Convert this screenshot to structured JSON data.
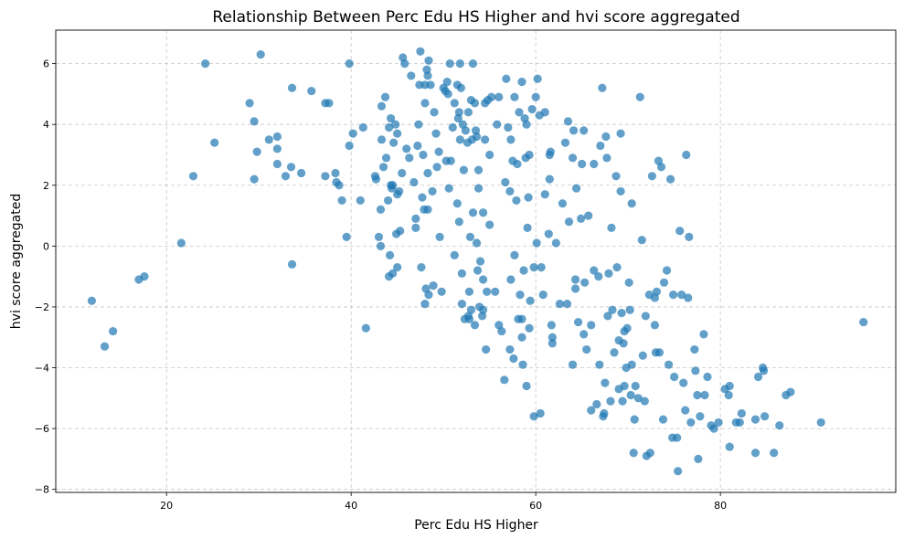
{
  "chart_data": {
    "type": "scatter",
    "title": "Relationship Between Perc Edu HS Higher and hvi score aggregated",
    "xlabel": "Perc Edu HS Higher",
    "ylabel": "hvi score aggregated",
    "xlim": [
      8,
      99
    ],
    "ylim": [
      -8.1,
      7.1
    ],
    "xticks": [
      20,
      40,
      60,
      80
    ],
    "yticks": [
      -8,
      -6,
      -4,
      -2,
      0,
      2,
      4,
      6
    ],
    "grid": true,
    "marker_color": "#1f77b4",
    "marker_alpha": 0.7,
    "points": [
      [
        11.9,
        -1.8
      ],
      [
        13.3,
        -3.3
      ],
      [
        14.2,
        -2.8
      ],
      [
        17.0,
        -1.1
      ],
      [
        17.6,
        -1.0
      ],
      [
        21.6,
        0.1
      ],
      [
        22.9,
        2.3
      ],
      [
        24.2,
        6.0
      ],
      [
        25.2,
        3.4
      ],
      [
        29.0,
        4.7
      ],
      [
        29.5,
        4.1
      ],
      [
        29.5,
        2.2
      ],
      [
        29.8,
        3.1
      ],
      [
        30.2,
        6.3
      ],
      [
        31.1,
        3.5
      ],
      [
        32.0,
        3.6
      ],
      [
        32.0,
        3.2
      ],
      [
        32.0,
        2.7
      ],
      [
        32.9,
        2.3
      ],
      [
        33.5,
        2.6
      ],
      [
        33.6,
        5.2
      ],
      [
        33.6,
        -0.6
      ],
      [
        34.6,
        2.4
      ],
      [
        35.7,
        5.1
      ],
      [
        37.2,
        4.7
      ],
      [
        37.2,
        2.3
      ],
      [
        37.6,
        4.7
      ],
      [
        38.3,
        2.4
      ],
      [
        38.4,
        2.1
      ],
      [
        38.7,
        2.0
      ],
      [
        39.0,
        1.5
      ],
      [
        39.5,
        0.3
      ],
      [
        39.8,
        6.0
      ],
      [
        39.8,
        3.3
      ],
      [
        40.2,
        3.7
      ],
      [
        41.0,
        1.5
      ],
      [
        41.3,
        3.9
      ],
      [
        41.6,
        -2.7
      ],
      [
        42.6,
        2.3
      ],
      [
        42.7,
        2.2
      ],
      [
        43.0,
        0.3
      ],
      [
        43.2,
        0.0
      ],
      [
        43.2,
        1.2
      ],
      [
        43.3,
        4.6
      ],
      [
        43.3,
        3.5
      ],
      [
        43.5,
        2.6
      ],
      [
        43.7,
        4.9
      ],
      [
        43.8,
        2.9
      ],
      [
        44.0,
        1.5
      ],
      [
        44.1,
        3.9
      ],
      [
        44.1,
        -1.0
      ],
      [
        44.2,
        -0.3
      ],
      [
        44.3,
        2.0
      ],
      [
        44.3,
        4.2
      ],
      [
        44.4,
        1.9
      ],
      [
        44.5,
        -0.9
      ],
      [
        44.5,
        2.0
      ],
      [
        44.6,
        3.4
      ],
      [
        44.8,
        4.0
      ],
      [
        44.9,
        0.4
      ],
      [
        45.0,
        1.7
      ],
      [
        45.0,
        3.7
      ],
      [
        45.0,
        -0.7
      ],
      [
        45.2,
        1.8
      ],
      [
        45.3,
        0.5
      ],
      [
        45.5,
        2.4
      ],
      [
        45.6,
        6.2
      ],
      [
        45.8,
        6.0
      ],
      [
        46.0,
        3.2
      ],
      [
        46.3,
        2.9
      ],
      [
        46.5,
        5.6
      ],
      [
        46.8,
        2.1
      ],
      [
        47.0,
        0.6
      ],
      [
        47.0,
        0.9
      ],
      [
        47.2,
        3.3
      ],
      [
        47.3,
        4.0
      ],
      [
        47.4,
        5.3
      ],
      [
        47.5,
        6.4
      ],
      [
        47.6,
        -0.7
      ],
      [
        47.7,
        1.6
      ],
      [
        47.8,
        3.0
      ],
      [
        47.9,
        1.2
      ],
      [
        48.0,
        5.3
      ],
      [
        48.0,
        4.7
      ],
      [
        48.0,
        -1.9
      ],
      [
        48.1,
        -1.4
      ],
      [
        48.2,
        5.8
      ],
      [
        48.3,
        1.2
      ],
      [
        48.3,
        2.4
      ],
      [
        48.3,
        5.6
      ],
      [
        48.4,
        -1.6
      ],
      [
        48.4,
        6.1
      ],
      [
        48.6,
        5.3
      ],
      [
        48.8,
        1.8
      ],
      [
        48.9,
        -1.3
      ],
      [
        49.0,
        4.4
      ],
      [
        49.2,
        3.7
      ],
      [
        49.3,
        2.6
      ],
      [
        49.5,
        3.1
      ],
      [
        49.6,
        0.3
      ],
      [
        49.8,
        -1.5
      ],
      [
        50.0,
        5.2
      ],
      [
        50.2,
        5.1
      ],
      [
        50.3,
        2.8
      ],
      [
        50.4,
        5.4
      ],
      [
        50.5,
        5.0
      ],
      [
        50.6,
        1.9
      ],
      [
        50.7,
        6.0
      ],
      [
        50.8,
        2.8
      ],
      [
        51.0,
        3.9
      ],
      [
        51.2,
        -0.3
      ],
      [
        51.2,
        4.7
      ],
      [
        51.5,
        1.4
      ],
      [
        51.5,
        5.3
      ],
      [
        51.6,
        4.2
      ],
      [
        51.7,
        0.8
      ],
      [
        51.7,
        4.4
      ],
      [
        51.8,
        6.0
      ],
      [
        51.8,
        3.5
      ],
      [
        51.9,
        5.2
      ],
      [
        52.0,
        -0.9
      ],
      [
        52.0,
        -1.9
      ],
      [
        52.1,
        4.0
      ],
      [
        52.2,
        2.5
      ],
      [
        52.3,
        -2.4
      ],
      [
        52.4,
        3.8
      ],
      [
        52.6,
        3.4
      ],
      [
        52.7,
        4.4
      ],
      [
        52.7,
        -2.3
      ],
      [
        52.8,
        -1.5
      ],
      [
        52.8,
        -2.4
      ],
      [
        52.9,
        0.3
      ],
      [
        53.0,
        4.8
      ],
      [
        53.0,
        -2.1
      ],
      [
        53.1,
        3.5
      ],
      [
        53.2,
        6.0
      ],
      [
        53.2,
        1.1
      ],
      [
        53.4,
        4.7
      ],
      [
        53.4,
        -2.6
      ],
      [
        53.5,
        3.8
      ],
      [
        53.6,
        0.1
      ],
      [
        53.6,
        3.6
      ],
      [
        53.7,
        -0.8
      ],
      [
        53.8,
        2.5
      ],
      [
        53.8,
        1.9
      ],
      [
        53.9,
        -2.0
      ],
      [
        54.0,
        -0.5
      ],
      [
        54.2,
        -2.3
      ],
      [
        54.3,
        1.1
      ],
      [
        54.3,
        -2.1
      ],
      [
        54.3,
        -1.1
      ],
      [
        54.5,
        4.7
      ],
      [
        54.5,
        3.5
      ],
      [
        54.6,
        -3.4
      ],
      [
        54.7,
        -1.5
      ],
      [
        54.8,
        4.8
      ],
      [
        55.0,
        3.0
      ],
      [
        55.0,
        0.7
      ],
      [
        55.2,
        4.9
      ],
      [
        55.6,
        -1.5
      ],
      [
        55.8,
        4.0
      ],
      [
        56.0,
        -2.6
      ],
      [
        56.0,
        4.9
      ],
      [
        56.3,
        -2.8
      ],
      [
        56.6,
        -4.4
      ],
      [
        56.7,
        2.1
      ],
      [
        56.8,
        5.5
      ],
      [
        57.0,
        3.9
      ],
      [
        57.2,
        -3.4
      ],
      [
        57.2,
        1.8
      ],
      [
        57.3,
        3.5
      ],
      [
        57.3,
        -1.1
      ],
      [
        57.5,
        2.8
      ],
      [
        57.6,
        -3.7
      ],
      [
        57.7,
        4.9
      ],
      [
        57.7,
        -0.3
      ],
      [
        57.9,
        1.5
      ],
      [
        58.0,
        2.7
      ],
      [
        58.1,
        -2.4
      ],
      [
        58.2,
        4.4
      ],
      [
        58.3,
        -1.6
      ],
      [
        58.5,
        5.4
      ],
      [
        58.5,
        -3.0
      ],
      [
        58.5,
        -2.4
      ],
      [
        58.6,
        -3.9
      ],
      [
        58.7,
        -0.8
      ],
      [
        58.8,
        4.2
      ],
      [
        58.9,
        2.9
      ],
      [
        59.0,
        4.0
      ],
      [
        59.0,
        -4.6
      ],
      [
        59.1,
        0.6
      ],
      [
        59.2,
        1.6
      ],
      [
        59.3,
        -2.7
      ],
      [
        59.3,
        3.0
      ],
      [
        59.4,
        -1.8
      ],
      [
        59.6,
        4.5
      ],
      [
        59.8,
        -0.7
      ],
      [
        59.8,
        -5.6
      ],
      [
        60.0,
        4.9
      ],
      [
        60.1,
        0.1
      ],
      [
        60.2,
        5.5
      ],
      [
        60.4,
        4.3
      ],
      [
        60.5,
        -5.5
      ],
      [
        60.6,
        -0.7
      ],
      [
        60.8,
        -1.6
      ],
      [
        61.0,
        1.7
      ],
      [
        61.0,
        4.4
      ],
      [
        61.4,
        0.4
      ],
      [
        61.5,
        3.0
      ],
      [
        61.5,
        2.2
      ],
      [
        61.6,
        3.1
      ],
      [
        61.7,
        -2.6
      ],
      [
        61.8,
        -3.2
      ],
      [
        61.8,
        -3.0
      ],
      [
        62.2,
        0.1
      ],
      [
        62.6,
        -1.9
      ],
      [
        62.9,
        1.4
      ],
      [
        63.2,
        3.4
      ],
      [
        63.4,
        -1.9
      ],
      [
        63.5,
        4.1
      ],
      [
        63.6,
        0.8
      ],
      [
        64.0,
        2.9
      ],
      [
        64.0,
        -3.9
      ],
      [
        64.1,
        3.8
      ],
      [
        64.3,
        -1.4
      ],
      [
        64.3,
        -1.1
      ],
      [
        64.4,
        1.9
      ],
      [
        64.6,
        -2.5
      ],
      [
        64.9,
        0.9
      ],
      [
        65.0,
        2.7
      ],
      [
        65.2,
        3.8
      ],
      [
        65.2,
        -2.9
      ],
      [
        65.3,
        -1.2
      ],
      [
        65.5,
        -3.4
      ],
      [
        65.7,
        1.0
      ],
      [
        66.0,
        -2.6
      ],
      [
        66.0,
        -5.4
      ],
      [
        66.3,
        2.7
      ],
      [
        66.3,
        -0.8
      ],
      [
        66.6,
        -5.2
      ],
      [
        66.8,
        -1.0
      ],
      [
        66.9,
        -3.9
      ],
      [
        67.0,
        3.3
      ],
      [
        67.2,
        5.2
      ],
      [
        67.3,
        -5.6
      ],
      [
        67.4,
        -5.5
      ],
      [
        67.5,
        -4.5
      ],
      [
        67.6,
        3.6
      ],
      [
        67.7,
        2.9
      ],
      [
        67.8,
        -2.3
      ],
      [
        67.9,
        -0.9
      ],
      [
        68.1,
        -5.1
      ],
      [
        68.2,
        0.6
      ],
      [
        68.3,
        -2.1
      ],
      [
        68.5,
        -3.5
      ],
      [
        68.7,
        2.3
      ],
      [
        68.8,
        -0.7
      ],
      [
        69.0,
        -4.7
      ],
      [
        69.0,
        -3.1
      ],
      [
        69.2,
        1.8
      ],
      [
        69.2,
        3.7
      ],
      [
        69.3,
        -2.2
      ],
      [
        69.4,
        -5.1
      ],
      [
        69.5,
        -3.2
      ],
      [
        69.6,
        -4.6
      ],
      [
        69.6,
        -2.8
      ],
      [
        69.8,
        -4.0
      ],
      [
        69.9,
        -2.7
      ],
      [
        70.1,
        -1.2
      ],
      [
        70.2,
        -2.1
      ],
      [
        70.3,
        -4.9
      ],
      [
        70.4,
        1.4
      ],
      [
        70.4,
        -3.9
      ],
      [
        70.6,
        -6.8
      ],
      [
        70.7,
        -5.7
      ],
      [
        70.8,
        -4.6
      ],
      [
        71.1,
        -5.0
      ],
      [
        71.3,
        4.9
      ],
      [
        71.5,
        0.2
      ],
      [
        71.6,
        -3.6
      ],
      [
        71.8,
        -5.1
      ],
      [
        71.9,
        -2.3
      ],
      [
        72.0,
        -6.9
      ],
      [
        72.3,
        -1.6
      ],
      [
        72.4,
        -6.8
      ],
      [
        72.6,
        2.3
      ],
      [
        72.9,
        -2.6
      ],
      [
        72.9,
        -1.7
      ],
      [
        73.0,
        -3.5
      ],
      [
        73.1,
        -1.5
      ],
      [
        73.3,
        2.8
      ],
      [
        73.4,
        -3.5
      ],
      [
        73.6,
        2.6
      ],
      [
        73.8,
        -5.7
      ],
      [
        73.9,
        -1.2
      ],
      [
        74.2,
        -0.8
      ],
      [
        74.4,
        -3.9
      ],
      [
        74.6,
        2.2
      ],
      [
        74.8,
        -6.3
      ],
      [
        74.9,
        -1.6
      ],
      [
        75.0,
        -4.3
      ],
      [
        75.3,
        -6.3
      ],
      [
        75.4,
        -7.4
      ],
      [
        75.6,
        0.5
      ],
      [
        75.8,
        -1.6
      ],
      [
        76.0,
        -4.5
      ],
      [
        76.2,
        -5.4
      ],
      [
        76.3,
        3.0
      ],
      [
        76.5,
        -1.7
      ],
      [
        76.6,
        0.3
      ],
      [
        76.8,
        -5.8
      ],
      [
        77.2,
        -3.4
      ],
      [
        77.3,
        -4.1
      ],
      [
        77.5,
        -4.9
      ],
      [
        77.6,
        -7.0
      ],
      [
        77.8,
        -5.6
      ],
      [
        78.2,
        -2.9
      ],
      [
        78.3,
        -4.9
      ],
      [
        78.6,
        -4.3
      ],
      [
        79.0,
        -5.9
      ],
      [
        79.3,
        -6.0
      ],
      [
        79.8,
        -5.8
      ],
      [
        80.5,
        -4.7
      ],
      [
        80.9,
        -4.9
      ],
      [
        81.0,
        -4.6
      ],
      [
        81.0,
        -6.6
      ],
      [
        81.7,
        -5.8
      ],
      [
        82.1,
        -5.8
      ],
      [
        82.3,
        -5.5
      ],
      [
        83.8,
        -6.8
      ],
      [
        83.8,
        -5.7
      ],
      [
        84.1,
        -4.3
      ],
      [
        84.6,
        -4.0
      ],
      [
        84.7,
        -4.1
      ],
      [
        84.8,
        -5.6
      ],
      [
        85.8,
        -6.8
      ],
      [
        86.4,
        -5.9
      ],
      [
        87.1,
        -4.9
      ],
      [
        87.6,
        -4.8
      ],
      [
        90.9,
        -5.8
      ],
      [
        95.5,
        -2.5
      ]
    ]
  }
}
